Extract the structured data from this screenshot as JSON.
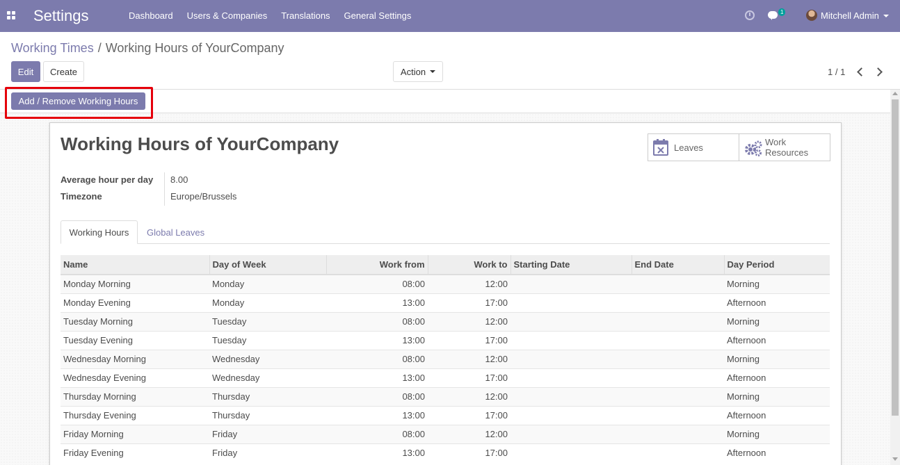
{
  "app": {
    "title": "Settings",
    "menu": [
      "Dashboard",
      "Users & Companies",
      "Translations",
      "General Settings"
    ],
    "chat_badge": "1",
    "user_name": "Mitchell Admin"
  },
  "breadcrumb": {
    "parent": "Working Times",
    "separator": "/",
    "current": "Working Hours of YourCompany"
  },
  "toolbar": {
    "edit_label": "Edit",
    "create_label": "Create",
    "action_label": "Action",
    "pager": "1 / 1"
  },
  "statusbar": {
    "add_remove_label": "Add / Remove Working Hours"
  },
  "record": {
    "title": "Working Hours of YourCompany",
    "smart_buttons": {
      "leaves": "Leaves",
      "work_resources_line1": "Work",
      "work_resources_line2": "Resources"
    },
    "fields": {
      "avg_hour_label": "Average hour per day",
      "avg_hour_value": "8.00",
      "timezone_label": "Timezone",
      "timezone_value": "Europe/Brussels"
    },
    "tabs": [
      "Working Hours",
      "Global Leaves"
    ]
  },
  "table": {
    "columns": [
      "Name",
      "Day of Week",
      "Work from",
      "Work to",
      "Starting Date",
      "End Date",
      "Day Period"
    ],
    "rows": [
      [
        "Monday Morning",
        "Monday",
        "08:00",
        "12:00",
        "",
        "",
        "Morning"
      ],
      [
        "Monday Evening",
        "Monday",
        "13:00",
        "17:00",
        "",
        "",
        "Afternoon"
      ],
      [
        "Tuesday Morning",
        "Tuesday",
        "08:00",
        "12:00",
        "",
        "",
        "Morning"
      ],
      [
        "Tuesday Evening",
        "Tuesday",
        "13:00",
        "17:00",
        "",
        "",
        "Afternoon"
      ],
      [
        "Wednesday Morning",
        "Wednesday",
        "08:00",
        "12:00",
        "",
        "",
        "Morning"
      ],
      [
        "Wednesday Evening",
        "Wednesday",
        "13:00",
        "17:00",
        "",
        "",
        "Afternoon"
      ],
      [
        "Thursday Morning",
        "Thursday",
        "08:00",
        "12:00",
        "",
        "",
        "Morning"
      ],
      [
        "Thursday Evening",
        "Thursday",
        "13:00",
        "17:00",
        "",
        "",
        "Afternoon"
      ],
      [
        "Friday Morning",
        "Friday",
        "08:00",
        "12:00",
        "",
        "",
        "Morning"
      ],
      [
        "Friday Evening",
        "Friday",
        "13:00",
        "17:00",
        "",
        "",
        "Afternoon"
      ]
    ]
  },
  "colors": {
    "brand": "#7c7bad",
    "highlight": "#e5000b"
  }
}
